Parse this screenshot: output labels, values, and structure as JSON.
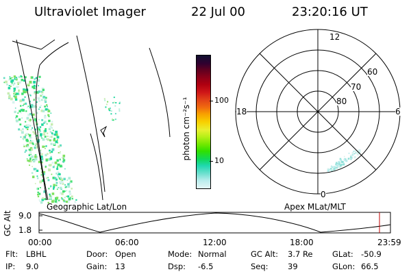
{
  "header": {
    "instrument": "Ultraviolet Imager",
    "date": "22 Jul 00",
    "time": "23:20:16 UT"
  },
  "geo_map": {
    "title": "Geographic Lat/Lon"
  },
  "color_bar": {
    "unit_label": "photon cm⁻²s⁻¹",
    "ticks": [
      "100",
      "10"
    ],
    "colors": [
      "#101030",
      "#300030",
      "#600020",
      "#900018",
      "#b00010",
      "#d01818",
      "#e04018",
      "#f06a10",
      "#f8a000",
      "#f8d000",
      "#e8f030",
      "#b8f018",
      "#70e800",
      "#30e000",
      "#10d858",
      "#20d8b0",
      "#70e0d0",
      "#b8ecec",
      "#e4f6f6"
    ]
  },
  "polar_plot": {
    "title": "Apex MLat/MLT",
    "lat_labels": [
      "80",
      "70",
      "60"
    ],
    "mlt_labels": {
      "top": "12",
      "left": "18",
      "right": "6",
      "bottom": "0"
    }
  },
  "alt_plot": {
    "axis_label": "GC Alt",
    "y_ticks": [
      "9.0",
      "1.8"
    ],
    "x_ticks": [
      "00:00",
      "06:00",
      "12:00",
      "18:00",
      "23:59"
    ]
  },
  "status": {
    "row1": [
      {
        "label": "Flt:",
        "value": "LBHL"
      },
      {
        "label": "Door:",
        "value": "Open"
      },
      {
        "label": "Mode:",
        "value": "Normal"
      },
      {
        "label": "GC Alt:",
        "value": "3.7 Re"
      },
      {
        "label": "GLat:",
        "value": "-50.9"
      }
    ],
    "row2": [
      {
        "label": "IP:",
        "value": "9.0"
      },
      {
        "label": "Gain:",
        "value": "13"
      },
      {
        "label": "Dsp:",
        "value": "-6.5"
      },
      {
        "label": "Seq:",
        "value": "39"
      },
      {
        "label": "GLon:",
        "value": "66.5"
      }
    ]
  }
}
